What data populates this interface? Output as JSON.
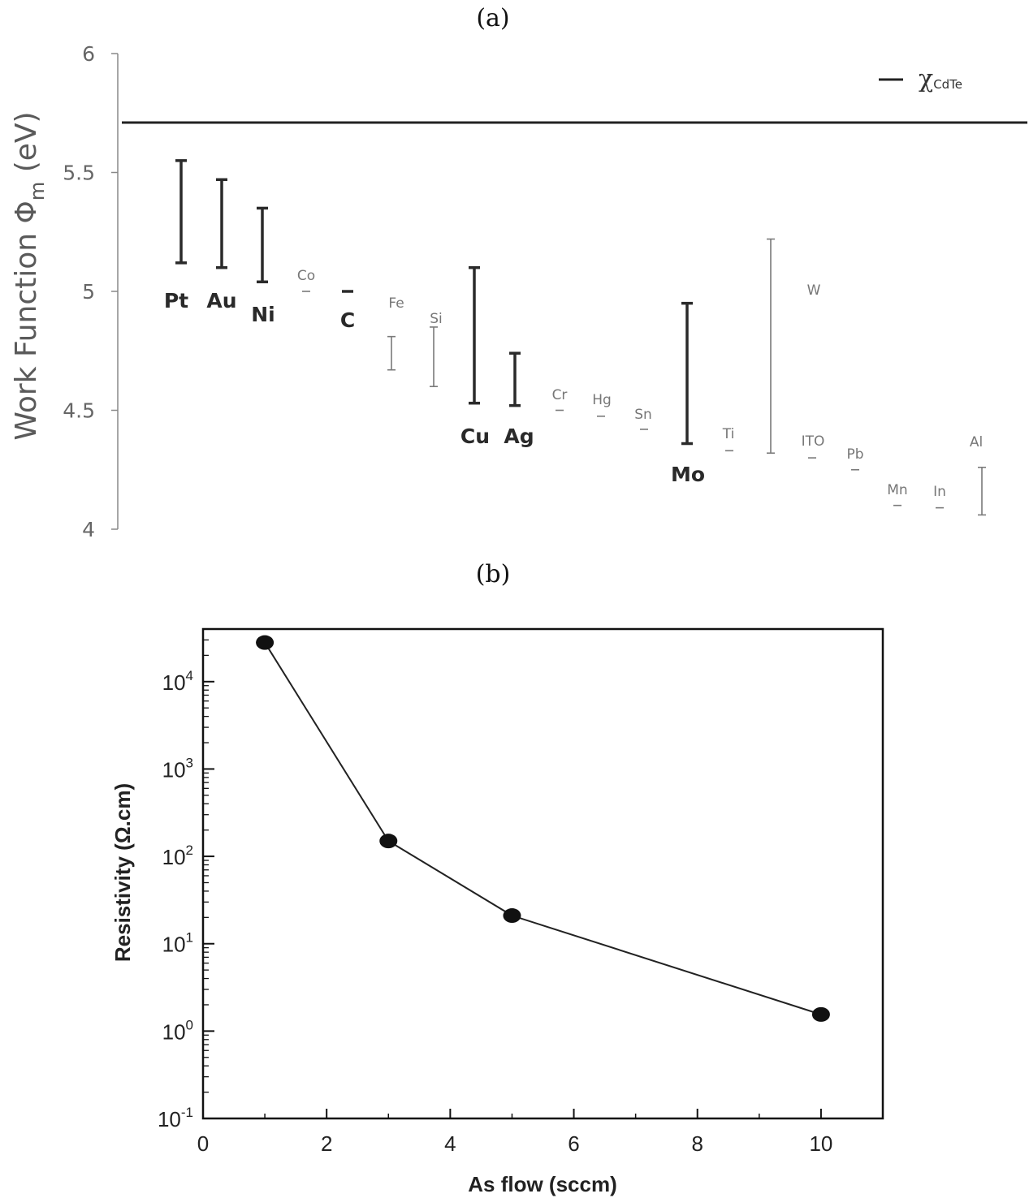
{
  "panel_labels": {
    "a": "(a)",
    "b": "(b)"
  },
  "chart_data": [
    {
      "type": "range-bar",
      "title": "",
      "ylabel": "Work Function Φm (eV)",
      "ylabel_parts": {
        "main": "Work Function Φ",
        "sub": "m",
        "unit": " (eV)"
      },
      "ylim": [
        4,
        6
      ],
      "yticks": [
        "4",
        "4.5",
        "5",
        "5.5",
        "6"
      ],
      "ytick_values": [
        4,
        4.5,
        5,
        5.5,
        6
      ],
      "grid": false,
      "legend": {
        "label_main": "χ",
        "label_sub": "CdTe",
        "placement": "top-right"
      },
      "reference_line": {
        "name": "χCdTe",
        "value": 5.71
      },
      "series": [
        {
          "name": "Pt",
          "low": 5.12,
          "high": 5.55,
          "style": "bold"
        },
        {
          "name": "Au",
          "low": 5.1,
          "high": 5.47,
          "style": "bold"
        },
        {
          "name": "Ni",
          "low": 5.04,
          "high": 5.35,
          "style": "bold"
        },
        {
          "name": "Co",
          "low": 5.0,
          "high": 5.0,
          "style": "light"
        },
        {
          "name": "C",
          "low": 5.0,
          "high": 5.0,
          "style": "bold"
        },
        {
          "name": "Fe",
          "low": 4.67,
          "high": 4.81,
          "style": "light"
        },
        {
          "name": "Si",
          "low": 4.6,
          "high": 4.85,
          "style": "light"
        },
        {
          "name": "Cu",
          "low": 4.53,
          "high": 5.1,
          "style": "bold"
        },
        {
          "name": "Ag",
          "low": 4.52,
          "high": 4.74,
          "style": "bold"
        },
        {
          "name": "Cr",
          "low": 4.5,
          "high": 4.5,
          "style": "light"
        },
        {
          "name": "Hg",
          "low": 4.475,
          "high": 4.475,
          "style": "light"
        },
        {
          "name": "Sn",
          "low": 4.42,
          "high": 4.42,
          "style": "light"
        },
        {
          "name": "Mo",
          "low": 4.36,
          "high": 4.95,
          "style": "bold"
        },
        {
          "name": "Ti",
          "low": 4.33,
          "high": 4.33,
          "style": "light"
        },
        {
          "name": "W",
          "low": 4.32,
          "high": 5.22,
          "style": "light"
        },
        {
          "name": "ITO",
          "low": 4.3,
          "high": 4.3,
          "style": "light"
        },
        {
          "name": "Pb",
          "low": 4.25,
          "high": 4.25,
          "style": "light"
        },
        {
          "name": "Mn",
          "low": 4.1,
          "high": 4.1,
          "style": "light"
        },
        {
          "name": "In",
          "low": 4.09,
          "high": 4.09,
          "style": "light"
        },
        {
          "name": "Al",
          "low": 4.06,
          "high": 4.26,
          "style": "light"
        }
      ]
    },
    {
      "type": "line",
      "title": "",
      "xlabel": "As flow (sccm)",
      "ylabel": "Resistivity (Ω.cm)",
      "yscale": "log",
      "xlim": [
        0,
        11
      ],
      "ylim": [
        0.1,
        40000
      ],
      "xticks": [
        "0",
        "2",
        "4",
        "6",
        "8",
        "10"
      ],
      "xtick_values": [
        0,
        2,
        4,
        6,
        8,
        10
      ],
      "yticks": [
        {
          "base": "10",
          "exp": "-1",
          "value": 0.1
        },
        {
          "base": "10",
          "exp": "0",
          "value": 1
        },
        {
          "base": "10",
          "exp": "1",
          "value": 10
        },
        {
          "base": "10",
          "exp": "2",
          "value": 100
        },
        {
          "base": "10",
          "exp": "3",
          "value": 1000
        },
        {
          "base": "10",
          "exp": "4",
          "value": 10000
        }
      ],
      "grid": false,
      "series": [
        {
          "x": [
            1,
            3,
            5,
            10
          ],
          "values": [
            28000,
            150,
            21,
            1.55
          ]
        }
      ]
    }
  ]
}
